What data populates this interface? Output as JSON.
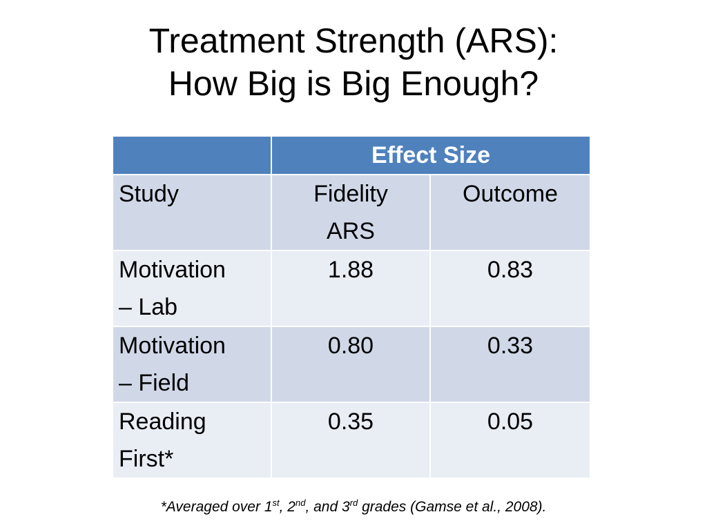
{
  "slide": {
    "title_line1": "Treatment Strength (ARS):",
    "title_line2": "How Big is Big Enough?"
  },
  "table": {
    "group_header": "Effect Size",
    "col_study": "Study",
    "col_fidelity_l1": "Fidelity",
    "col_fidelity_l2": "ARS",
    "col_outcome": "Outcome",
    "rows": [
      {
        "study_l1": "Motivation",
        "study_l2": "– Lab",
        "fidelity": "1.88",
        "outcome": "0.83"
      },
      {
        "study_l1": "Motivation",
        "study_l2": "– Field",
        "fidelity": "0.80",
        "outcome": "0.33"
      },
      {
        "study_l1": "Reading",
        "study_l2": "First*",
        "fidelity": "0.35",
        "outcome": "0.05"
      }
    ]
  },
  "footnote": {
    "prefix": "*Averaged over 1",
    "sup1": "st",
    "mid1": ", 2",
    "sup2": "nd",
    "mid2": ", and 3",
    "sup3": "rd",
    "suffix": " grades (Gamse et al., 2008)."
  },
  "colors": {
    "header_blue": "#4f81bd",
    "row_dark": "#d0d8e8",
    "row_light": "#e9edf4"
  }
}
